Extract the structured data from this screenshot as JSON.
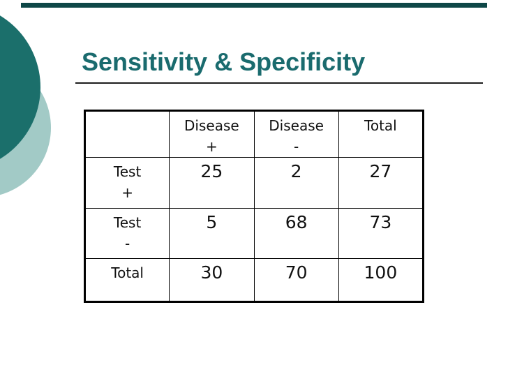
{
  "slide": {
    "title": "Sensitivity & Specificity",
    "colors": {
      "accent_dark_teal": "#1b6f6b",
      "accent_light_teal": "#a2cac6",
      "title_teal": "#1a6b6e",
      "top_bar": "#0e4747",
      "title_rule": "#1c1c1c",
      "table_border": "#000000",
      "cell_text": "#101010",
      "background": "#ffffff"
    }
  },
  "table": {
    "header_cells": [
      {
        "line1": "",
        "line2": ""
      },
      {
        "line1": "Disease",
        "line2": "+"
      },
      {
        "line1": "Disease",
        "line2": "-"
      },
      {
        "line1": "Total",
        "line2": ""
      }
    ],
    "rows": [
      {
        "label": {
          "line1": "Test",
          "line2": "+"
        },
        "cells": [
          "25",
          "2",
          "27"
        ]
      },
      {
        "label": {
          "line1": "Test",
          "line2": "-"
        },
        "cells": [
          "5",
          "68",
          "73"
        ]
      },
      {
        "label": {
          "line1": "Total",
          "line2": ""
        },
        "cells": [
          "30",
          "70",
          "100"
        ]
      }
    ]
  }
}
